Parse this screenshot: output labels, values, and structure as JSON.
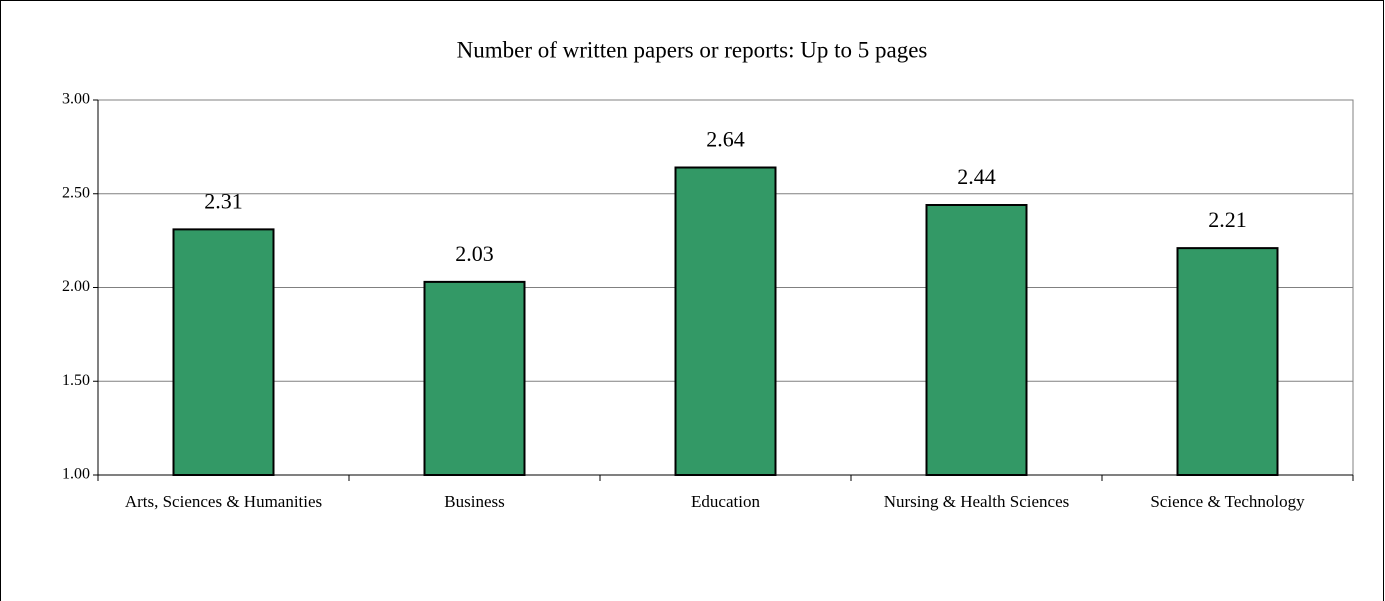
{
  "chart_data": {
    "type": "bar",
    "title": "Number of written papers or reports: Up to 5 pages",
    "categories": [
      "Arts, Sciences & Humanities",
      "Business",
      "Education",
      "Nursing & Health Sciences",
      "Science & Technology"
    ],
    "values": [
      2.31,
      2.03,
      2.64,
      2.44,
      2.21
    ],
    "color": "#339966",
    "ylim": [
      1,
      3
    ],
    "yticks": [
      {
        "value": 1,
        "label": "1.00"
      },
      {
        "value": 1.5,
        "label": "1.50"
      },
      {
        "value": 2,
        "label": "2.00"
      },
      {
        "value": 2.5,
        "label": "2.50"
      },
      {
        "value": 3,
        "label": "3.00"
      }
    ],
    "grid": true
  }
}
